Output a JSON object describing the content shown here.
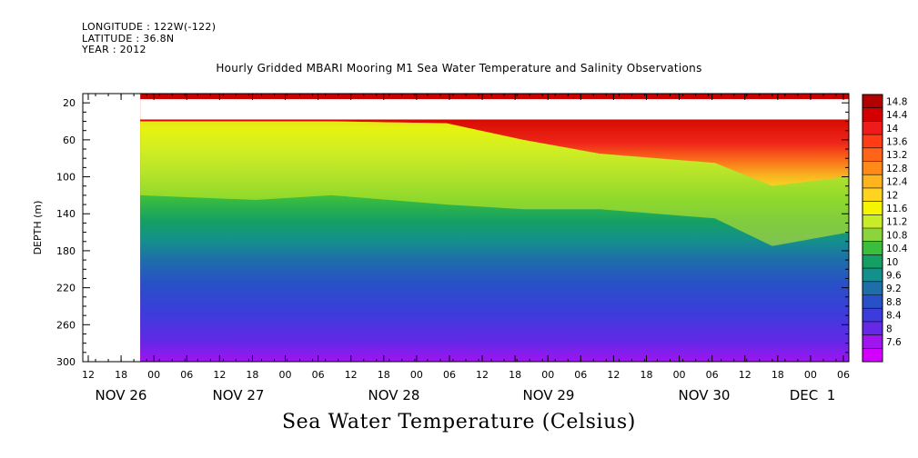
{
  "header": {
    "longitude": "LONGITUDE : 122W(-122)",
    "latitude": "LATITUDE : 36.8N",
    "year": "YEAR : 2012"
  },
  "chart_data": {
    "type": "heatmap",
    "title": "Hourly Gridded MBARI Mooring M1 Sea Water Temperature and Salinity Observations",
    "bottom_title": "Sea Water Temperature (Celsius)",
    "ylabel": "DEPTH (m)",
    "ylim": [
      300,
      10
    ],
    "y_ticks": [
      20,
      60,
      100,
      140,
      180,
      220,
      260,
      300
    ],
    "x_range_hours": [
      "2012-11-26 09:00",
      "2012-12-01 09:00"
    ],
    "x_hour_ticks": [
      "12",
      "18",
      "00",
      "06",
      "12",
      "18",
      "00",
      "06",
      "12",
      "18",
      "00",
      "06",
      "12",
      "18",
      "00",
      "06",
      "12",
      "18",
      "00",
      "06",
      "12",
      "18",
      "00",
      "06"
    ],
    "x_date_labels": [
      "NOV 26",
      "NOV 27",
      "NOV 28",
      "NOV 29",
      "NOV 30",
      "DEC  1"
    ],
    "data_start": "2012-11-26 18:00",
    "colorbar": {
      "labels": [
        "14.8",
        "14.4",
        "14",
        "13.6",
        "13.2",
        "12.8",
        "12.4",
        "12",
        "11.6",
        "11.2",
        "10.8",
        "10.4",
        "10",
        "9.6",
        "9.2",
        "8.8",
        "8.4",
        "8",
        "7.6"
      ],
      "min": 7.6,
      "max": 14.8,
      "colors": [
        "#b30000",
        "#d40000",
        "#ef1a1a",
        "#ff3c14",
        "#ff6418",
        "#ff8a1a",
        "#ffb41e",
        "#ffd420",
        "#f5f500",
        "#c8ec28",
        "#8cd43c",
        "#3cbe3c",
        "#14a064",
        "#14908c",
        "#1e6eaa",
        "#2850c8",
        "#3c3cdc",
        "#6428e6",
        "#a014f0",
        "#d200ff"
      ]
    },
    "profiles": [
      {
        "time": "2012-11-26 18:00",
        "thermocline_top_m": 40,
        "thermocline_bottom_m": 120
      },
      {
        "time": "2012-11-27 12:00",
        "thermocline_top_m": 40,
        "thermocline_bottom_m": 125
      },
      {
        "time": "2012-11-28 00:00",
        "thermocline_top_m": 40,
        "thermocline_bottom_m": 120
      },
      {
        "time": "2012-11-28 18:00",
        "thermocline_top_m": 42,
        "thermocline_bottom_m": 130
      },
      {
        "time": "2012-11-29 06:00",
        "thermocline_top_m": 60,
        "thermocline_bottom_m": 135
      },
      {
        "time": "2012-11-29 18:00",
        "thermocline_top_m": 75,
        "thermocline_bottom_m": 135
      },
      {
        "time": "2012-11-30 12:00",
        "thermocline_top_m": 85,
        "thermocline_bottom_m": 145
      },
      {
        "time": "2012-11-30 21:00",
        "thermocline_top_m": 110,
        "thermocline_bottom_m": 175
      },
      {
        "time": "2012-12-01 09:00",
        "thermocline_top_m": 100,
        "thermocline_bottom_m": 160
      }
    ]
  }
}
